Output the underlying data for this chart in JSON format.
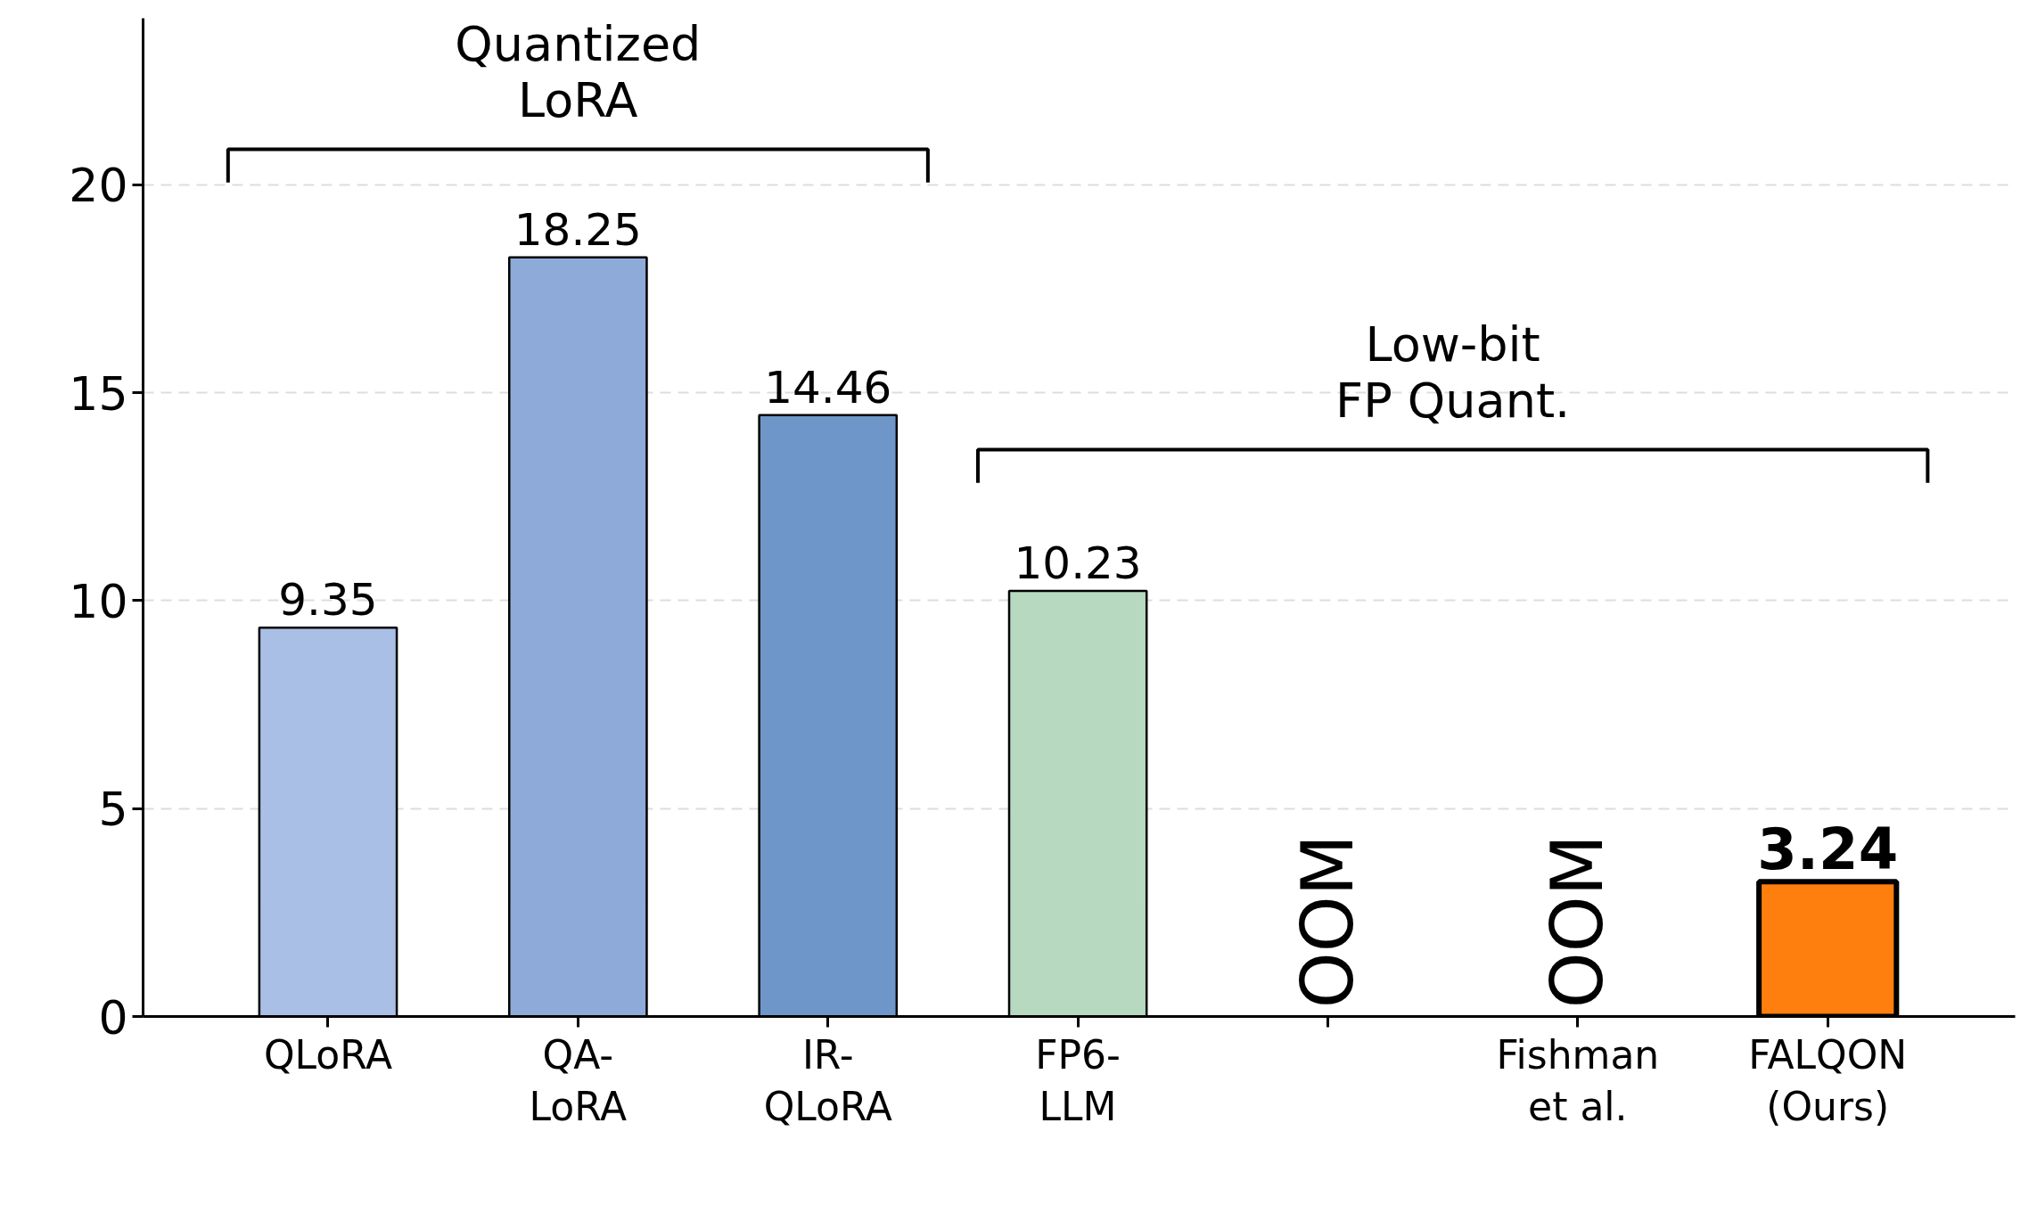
{
  "chart_data": {
    "type": "bar",
    "categories": [
      "QLoRA",
      "QA-\nLoRA",
      "IR-\nQLoRA",
      "FP6-\nLLM",
      null,
      "Fishman\net al.",
      "FALQON\n(Ours)"
    ],
    "values": [
      9.35,
      18.25,
      14.46,
      10.23,
      null,
      null,
      3.24
    ],
    "colors": [
      "#aabfe5",
      "#8eaad8",
      "#6e96c8",
      "#b7d9c0",
      null,
      null,
      "#ff7f0e"
    ],
    "value_labels": [
      "9.35",
      "18.25",
      "14.46",
      "10.23",
      "OOM",
      "OOM",
      "3.24"
    ],
    "annotations": [
      "Quantized\nLoRA",
      "Low-bit\nFP Quant."
    ],
    "ylim": [
      0,
      24
    ],
    "yticks": [
      0,
      5,
      10,
      15,
      20
    ],
    "grid": "y"
  }
}
